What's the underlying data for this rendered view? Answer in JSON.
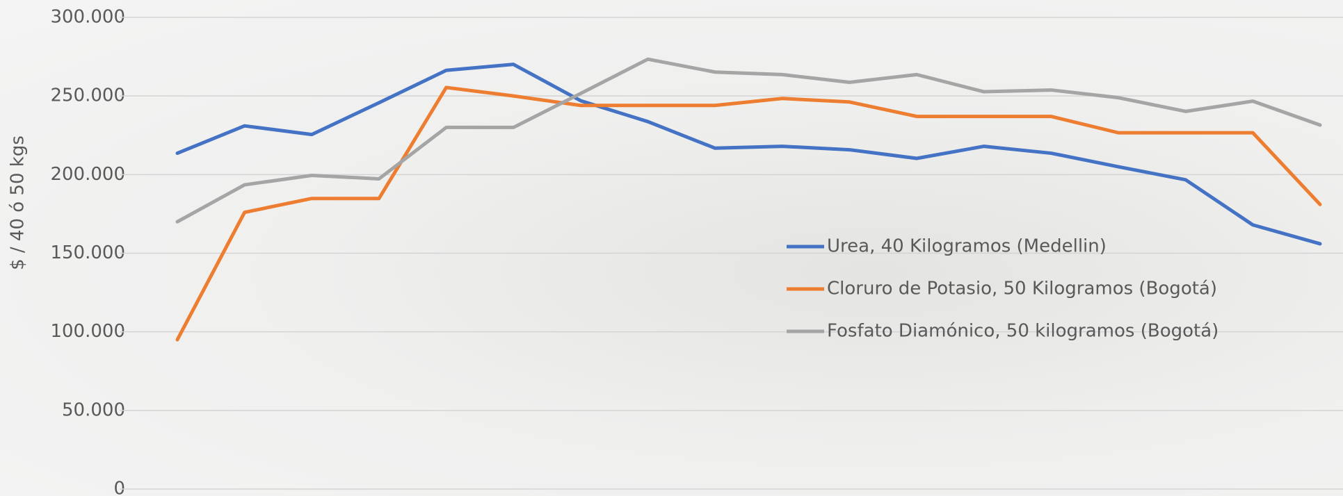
{
  "chart_data": {
    "type": "line",
    "y_label": "$ / 40 ó 50 kgs",
    "categories": [
      null,
      null,
      null,
      null,
      null,
      null,
      null,
      null,
      null,
      null,
      null,
      null,
      null,
      null,
      null,
      null,
      null,
      null
    ],
    "series": [
      {
        "name": "Urea, 40 Kilogramos (Medellin)",
        "color": "#4472c4",
        "values": [
          213600,
          231000,
          225500,
          245700,
          266300,
          270100,
          247000,
          233700,
          216800,
          218000,
          215800,
          210300,
          218000,
          213600,
          205000,
          196700,
          168000,
          156000
        ]
      },
      {
        "name": "Cloruro de Potasio, 50 Kilogramos (Bogotá)",
        "color": "#ed7d31",
        "values": [
          95000,
          176000,
          184800,
          184800,
          255400,
          250000,
          244000,
          244000,
          244000,
          248400,
          246200,
          237000,
          237000,
          237000,
          226600,
          226600,
          226600,
          181000
        ]
      },
      {
        "name": "Fosfato Diamónico, 50 kilogramos (Bogotá)",
        "color": "#a5a5a5",
        "values": [
          170000,
          193500,
          199500,
          197300,
          230000,
          230000,
          251600,
          273400,
          265200,
          263600,
          258700,
          263600,
          252700,
          253800,
          248900,
          240200,
          246700,
          231500
        ]
      }
    ],
    "ylim": [
      0,
      300000
    ],
    "yticks": [
      0,
      {
        "value": 50000,
        "label": "50.000"
      },
      {
        "value": 100000,
        "label": "100.000"
      },
      {
        "value": 150000,
        "label": "150.000"
      },
      {
        "value": 200000,
        "label": "200.000"
      },
      {
        "value": 250000,
        "label": "250.000"
      },
      {
        "value": 300000,
        "label": "300.000"
      }
    ],
    "grid": true
  }
}
